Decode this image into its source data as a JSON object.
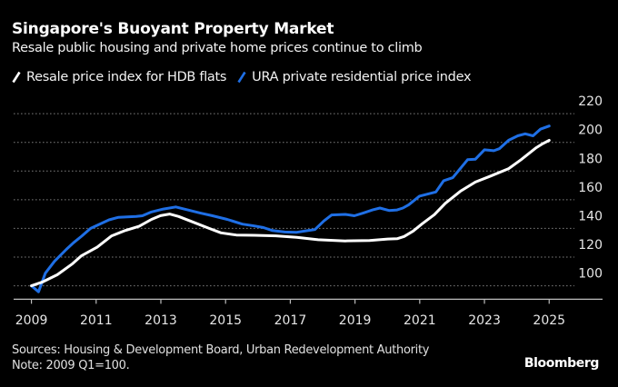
{
  "header": {
    "title": "Singapore's Buoyant Property Market",
    "subtitle": "Resale public housing and private home prices continue to climb"
  },
  "footer": {
    "sources": "Sources: Housing & Development Board, Urban Redevelopment Authority",
    "note": "Note: 2009 Q1=100.",
    "logo": "Bloomberg"
  },
  "chart_data": {
    "type": "line",
    "title": "Singapore's Buoyant Property Market",
    "subtitle": "Resale public housing and private home prices continue to climb",
    "xlabel": "",
    "ylabel": "",
    "xlim": [
      2008.45,
      2026.65
    ],
    "ylim": [
      90.6,
      222
    ],
    "x_ticks": [
      2009,
      2011,
      2013,
      2015,
      2017,
      2019,
      2021,
      2023,
      2025
    ],
    "x_tick_labels": [
      "2009",
      "2011",
      "2013",
      "2015",
      "2017",
      "2019",
      "2021",
      "2023",
      "2025"
    ],
    "y_ticks": [
      100,
      120,
      140,
      160,
      180,
      200,
      220
    ],
    "y_tick_labels": [
      "100",
      "120",
      "140",
      "160",
      "180",
      "200",
      "220"
    ],
    "y_axis_side": "right",
    "grid": "horizontal-dotted",
    "legend_position": "top-left",
    "series": [
      {
        "name": "Resale price index for HDB flats",
        "color": "#ffffff",
        "x": [
          2009.0,
          2009.33,
          2009.8,
          2010.27,
          2010.55,
          2011.03,
          2011.48,
          2011.87,
          2012.33,
          2012.71,
          2012.99,
          2013.27,
          2013.55,
          2014.02,
          2014.49,
          2014.86,
          2015.33,
          2015.89,
          2016.55,
          2017.2,
          2017.86,
          2018.7,
          2019.45,
          2020.01,
          2020.3,
          2020.52,
          2020.8,
          2021.08,
          2021.45,
          2021.79,
          2022.26,
          2022.72,
          2023.19,
          2023.75,
          2024.13,
          2024.6,
          2024.78,
          2025.0
        ],
        "values": [
          100,
          102.5,
          107.7,
          115.4,
          121,
          126.9,
          134.8,
          138.3,
          141.5,
          146.3,
          148.9,
          150,
          148.3,
          144.2,
          140,
          136.9,
          135.4,
          135.2,
          134.8,
          133.8,
          132.1,
          131.3,
          131.6,
          132.6,
          132.8,
          134.4,
          138.2,
          143.3,
          149.6,
          157.5,
          166,
          172.3,
          176.5,
          181.7,
          187.9,
          196.3,
          198.8,
          201.4
        ]
      },
      {
        "name": "URA private residential price index",
        "color": "#1f6fe5",
        "x": [
          2009.0,
          2009.22,
          2009.43,
          2009.71,
          2010.08,
          2010.3,
          2010.55,
          2010.83,
          2011.4,
          2011.68,
          2012.24,
          2012.43,
          2012.71,
          2013.08,
          2013.46,
          2013.83,
          2014.21,
          2014.58,
          2015.05,
          2015.52,
          2015.89,
          2016.17,
          2016.45,
          2016.83,
          2017.2,
          2017.48,
          2017.76,
          2018.04,
          2018.28,
          2018.7,
          2018.98,
          2019.26,
          2019.54,
          2019.77,
          2020.05,
          2020.3,
          2020.48,
          2020.66,
          2020.99,
          2021.5,
          2021.74,
          2022.02,
          2022.48,
          2022.72,
          2023.0,
          2023.29,
          2023.46,
          2023.75,
          2024.03,
          2024.26,
          2024.5,
          2024.73,
          2025.0
        ],
        "values": [
          100,
          95.8,
          108.8,
          117,
          125.4,
          130,
          134.6,
          140,
          146,
          147.7,
          148.3,
          148.8,
          151.5,
          153.5,
          155,
          152.9,
          150.8,
          148.9,
          146.3,
          143,
          141.7,
          140.6,
          138.5,
          137.5,
          137.3,
          138.3,
          139.2,
          145.2,
          149.4,
          149.8,
          148.8,
          150.8,
          152.9,
          154.2,
          152.5,
          152.9,
          154.2,
          156.5,
          162.5,
          165.4,
          173.3,
          175.4,
          187.9,
          188.3,
          194.8,
          194.2,
          195.6,
          201.5,
          204.6,
          206,
          204.6,
          209.2,
          211.4
        ]
      }
    ]
  }
}
